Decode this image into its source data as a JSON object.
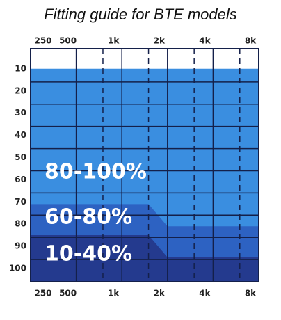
{
  "chart_data": {
    "type": "area",
    "title": "Fitting guide for BTE models",
    "xscale": "log",
    "xlim": [
      250,
      8000
    ],
    "xticks": [
      250,
      500,
      {
        "value": 1000,
        "label": "1k"
      },
      {
        "value": 2000,
        "label": "2k"
      },
      {
        "value": 4000,
        "label": "4k"
      },
      {
        "value": 8000,
        "label": "8k"
      }
    ],
    "minor_xticks": [
      750,
      1500,
      3000,
      6000
    ],
    "ylim": [
      0,
      105
    ],
    "yticks": [
      10,
      20,
      30,
      40,
      50,
      60,
      70,
      80,
      90,
      100
    ],
    "ygrid": [
      15,
      25,
      35,
      45,
      55,
      65,
      75,
      85,
      95
    ],
    "y_inverted": true,
    "series": [
      {
        "name": "80-100%",
        "color": "#3a8ee0",
        "x": [
          250,
          8000
        ],
        "values": [
          9,
          9
        ]
      },
      {
        "name": "60-80%",
        "color": "#2d62c2",
        "x": [
          250,
          1500,
          2000,
          8000
        ],
        "values": [
          70,
          70,
          80,
          80
        ]
      },
      {
        "name": "10-40%",
        "color": "#243a8e",
        "x": [
          250,
          1500,
          2000,
          8000
        ],
        "values": [
          84,
          84,
          94,
          94
        ]
      }
    ]
  }
}
